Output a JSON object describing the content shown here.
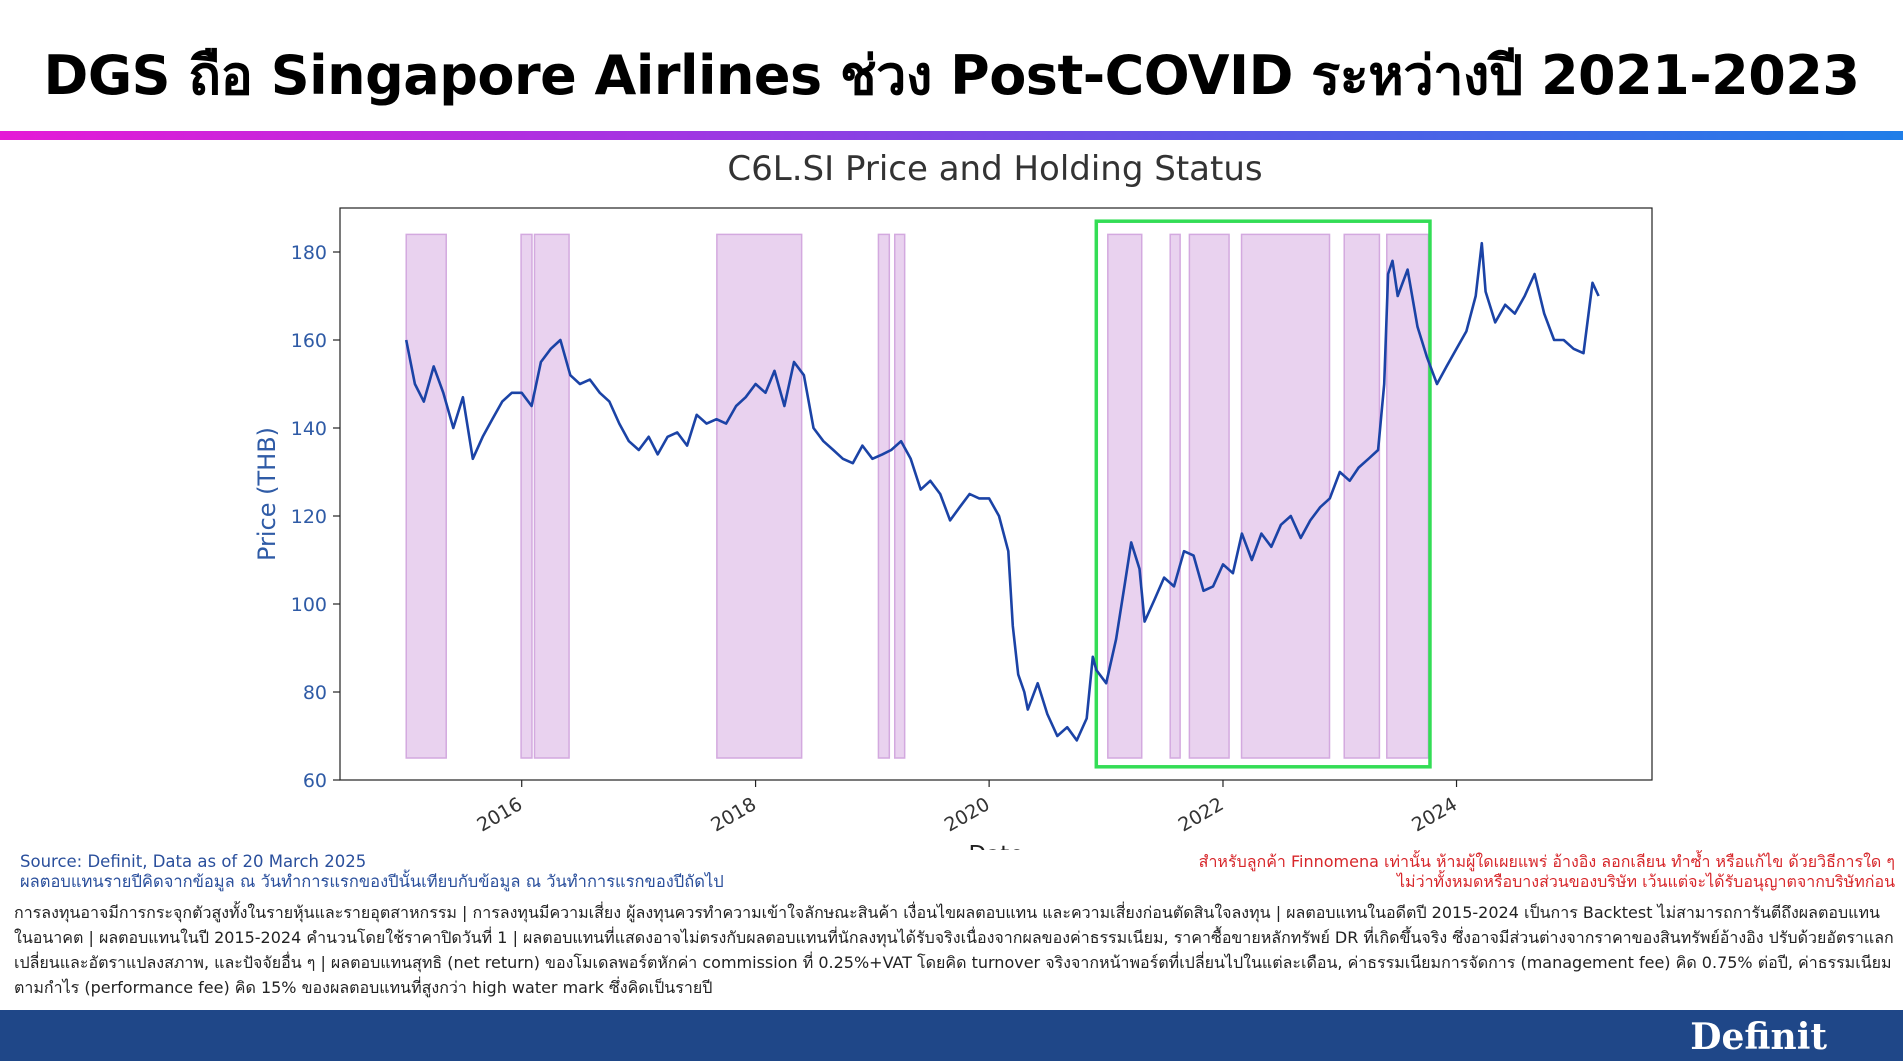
{
  "page": {
    "headline": "DGS ถือ Singapore Airlines ช่วง Post-COVID ระหว่างปี 2021-2023",
    "source_line1": "Source: Definit, Data as of 20 March 2025",
    "source_line2": "ผลตอบแทนรายปีคิดจากข้อมูล ณ วันทำการแรกของปีนั้นเทียบกับข้อมูล ณ วันทำการแรกของปีถัดไป",
    "notice_line1": "สำหรับลูกค้า Finnomena เท่านั้น ห้ามผู้ใดเผยแพร่ อ้างอิง ลอกเลียน ทำซ้ำ หรือแก้ไข ด้วยวิธีการใด ๆ",
    "notice_line2": "ไม่ว่าทั้งหมดหรือบางส่วนของบริษัท เว้นแต่จะได้รับอนุญาตจากบริษัทก่อน",
    "disclaimer": "การลงทุนอาจมีการกระจุกตัวสูงทั้งในรายหุ้นและรายอุตสาหกรรม | การลงทุนมีความเสี่ยง ผู้ลงทุนควรทำความเข้าใจลักษณะสินค้า เงื่อนไขผลตอบแทน และความเสี่ยงก่อนตัดสินใจลงทุน | ผลตอบแทนในอดีตปี 2015-2024 เป็นการ Backtest ไม่สามารถการันตีถึงผลตอบแทนในอนาคต | ผลตอบแทนในปี 2015-2024 คำนวนโดยใช้ราคาปิดวันที่ 1 | ผลตอบแทนที่แสดงอาจไม่ตรงกับผลตอบแทนที่นักลงทุนได้รับจริงเนื่องจากผลของค่าธรรมเนียม, ราคาซื้อขายหลักทรัพย์ DR ที่เกิดขึ้นจริง ซึ่งอาจมีส่วนต่างจากราคาของสินทรัพย์อ้างอิง ปรับด้วยอัตราแลกเปลี่ยนและอัตราแปลงสภาพ, และปัจจัยอื่น ๆ | ผลตอบแทนสุทธิ (net return) ของโมเดลพอร์ตหักค่า commission ที่ 0.25%+VAT โดยคิด turnover จริงจากหน้าพอร์ตที่เปลี่ยนไปในแต่ละเดือน, ค่าธรรมเนียมการจัดการ (management fee) คิด 0.75% ต่อปี, ค่าธรรมเนียมตามกำไร (performance fee) คิด 15% ของผลตอบแทนที่สูงกว่า high water mark ซึ่งคิดเป็นรายปี",
    "brand": "Definit"
  },
  "colors": {
    "line": "#1b43a6",
    "holding_fill": "#e9d2ef",
    "holding_stroke": "#d3a9df",
    "highlight_box": "#33dd55",
    "axis_label": "#2f5ba6",
    "footer": "#1f4788"
  },
  "chart_data": {
    "type": "line",
    "title": "C6L.SI Price and Holding Status",
    "xlabel": "Date",
    "ylabel": "Price (THB)",
    "ylim": [
      60,
      190
    ],
    "xlim": [
      "2014-06-12",
      "2025-09-03"
    ],
    "y_ticks": [
      60,
      80,
      100,
      120,
      140,
      160,
      180
    ],
    "x_ticks": [
      "2016-01-01",
      "2018-01-01",
      "2020-01-01",
      "2022-01-01",
      "2024-01-01"
    ],
    "x_tick_labels": [
      "2016",
      "2018",
      "2020",
      "2022",
      "2024"
    ],
    "grid": false,
    "holding_periods": [
      [
        "2015-01-05",
        "2015-05-10"
      ],
      [
        "2015-12-30",
        "2016-02-02"
      ],
      [
        "2016-02-10",
        "2016-05-28"
      ],
      [
        "2017-09-02",
        "2018-05-25"
      ],
      [
        "2019-01-20",
        "2019-02-23"
      ],
      [
        "2019-03-12",
        "2019-04-12"
      ],
      [
        "2021-01-06",
        "2021-04-22"
      ],
      [
        "2021-07-20",
        "2021-08-20"
      ],
      [
        "2021-09-18",
        "2022-01-20"
      ],
      [
        "2022-02-28",
        "2022-11-30"
      ],
      [
        "2023-01-15",
        "2023-05-05"
      ],
      [
        "2023-05-28",
        "2023-10-05"
      ]
    ],
    "highlight_window": {
      "x_start": "2020-12-01",
      "x_end": "2023-10-10",
      "y_low": 63,
      "y_high": 187,
      "label": ""
    },
    "series": [
      {
        "points": [
          [
            "2015-01-05",
            160
          ],
          [
            "2015-02-01",
            150
          ],
          [
            "2015-03-01",
            146
          ],
          [
            "2015-04-01",
            154
          ],
          [
            "2015-05-01",
            148
          ],
          [
            "2015-06-01",
            140
          ],
          [
            "2015-07-01",
            147
          ],
          [
            "2015-08-01",
            133
          ],
          [
            "2015-09-01",
            138
          ],
          [
            "2015-10-01",
            142
          ],
          [
            "2015-11-01",
            146
          ],
          [
            "2015-12-01",
            148
          ],
          [
            "2016-01-01",
            148
          ],
          [
            "2016-02-01",
            145
          ],
          [
            "2016-03-01",
            155
          ],
          [
            "2016-04-01",
            158
          ],
          [
            "2016-05-01",
            160
          ],
          [
            "2016-06-01",
            152
          ],
          [
            "2016-07-01",
            150
          ],
          [
            "2016-08-01",
            151
          ],
          [
            "2016-09-01",
            148
          ],
          [
            "2016-10-01",
            146
          ],
          [
            "2016-11-01",
            141
          ],
          [
            "2016-12-01",
            137
          ],
          [
            "2017-01-01",
            135
          ],
          [
            "2017-02-01",
            138
          ],
          [
            "2017-03-01",
            134
          ],
          [
            "2017-04-01",
            138
          ],
          [
            "2017-05-01",
            139
          ],
          [
            "2017-06-01",
            136
          ],
          [
            "2017-07-01",
            143
          ],
          [
            "2017-08-01",
            141
          ],
          [
            "2017-09-01",
            142
          ],
          [
            "2017-10-01",
            141
          ],
          [
            "2017-11-01",
            145
          ],
          [
            "2017-12-01",
            147
          ],
          [
            "2018-01-01",
            150
          ],
          [
            "2018-02-01",
            148
          ],
          [
            "2018-03-01",
            153
          ],
          [
            "2018-04-01",
            145
          ],
          [
            "2018-05-01",
            155
          ],
          [
            "2018-06-01",
            152
          ],
          [
            "2018-07-01",
            140
          ],
          [
            "2018-08-01",
            137
          ],
          [
            "2018-09-01",
            135
          ],
          [
            "2018-10-01",
            133
          ],
          [
            "2018-11-01",
            132
          ],
          [
            "2018-12-01",
            136
          ],
          [
            "2019-01-01",
            133
          ],
          [
            "2019-02-01",
            134
          ],
          [
            "2019-03-01",
            135
          ],
          [
            "2019-04-01",
            137
          ],
          [
            "2019-05-01",
            133
          ],
          [
            "2019-06-01",
            126
          ],
          [
            "2019-07-01",
            128
          ],
          [
            "2019-08-01",
            125
          ],
          [
            "2019-09-01",
            119
          ],
          [
            "2019-10-01",
            122
          ],
          [
            "2019-11-01",
            125
          ],
          [
            "2019-12-01",
            124
          ],
          [
            "2020-01-01",
            124
          ],
          [
            "2020-02-01",
            120
          ],
          [
            "2020-03-01",
            112
          ],
          [
            "2020-03-15",
            95
          ],
          [
            "2020-04-01",
            84
          ],
          [
            "2020-04-20",
            80
          ],
          [
            "2020-05-01",
            76
          ],
          [
            "2020-06-01",
            82
          ],
          [
            "2020-07-01",
            75
          ],
          [
            "2020-08-01",
            70
          ],
          [
            "2020-09-01",
            72
          ],
          [
            "2020-10-01",
            69
          ],
          [
            "2020-11-01",
            74
          ],
          [
            "2020-11-20",
            88
          ],
          [
            "2020-12-01",
            85
          ],
          [
            "2021-01-01",
            82
          ],
          [
            "2021-02-01",
            92
          ],
          [
            "2021-03-01",
            105
          ],
          [
            "2021-03-20",
            114
          ],
          [
            "2021-04-15",
            108
          ],
          [
            "2021-05-01",
            96
          ],
          [
            "2021-06-01",
            101
          ],
          [
            "2021-07-01",
            106
          ],
          [
            "2021-08-01",
            104
          ],
          [
            "2021-09-01",
            112
          ],
          [
            "2021-10-01",
            111
          ],
          [
            "2021-11-01",
            103
          ],
          [
            "2021-12-01",
            104
          ],
          [
            "2022-01-01",
            109
          ],
          [
            "2022-02-01",
            107
          ],
          [
            "2022-03-01",
            116
          ],
          [
            "2022-04-01",
            110
          ],
          [
            "2022-05-01",
            116
          ],
          [
            "2022-06-01",
            113
          ],
          [
            "2022-07-01",
            118
          ],
          [
            "2022-08-01",
            120
          ],
          [
            "2022-09-01",
            115
          ],
          [
            "2022-10-01",
            119
          ],
          [
            "2022-11-01",
            122
          ],
          [
            "2022-12-01",
            124
          ],
          [
            "2023-01-01",
            130
          ],
          [
            "2023-02-01",
            128
          ],
          [
            "2023-03-01",
            131
          ],
          [
            "2023-04-01",
            133
          ],
          [
            "2023-05-01",
            135
          ],
          [
            "2023-05-20",
            150
          ],
          [
            "2023-06-01",
            175
          ],
          [
            "2023-06-15",
            178
          ],
          [
            "2023-07-01",
            170
          ],
          [
            "2023-08-01",
            176
          ],
          [
            "2023-09-01",
            163
          ],
          [
            "2023-10-01",
            156
          ],
          [
            "2023-11-01",
            150
          ],
          [
            "2023-12-01",
            154
          ],
          [
            "2024-01-01",
            158
          ],
          [
            "2024-02-01",
            162
          ],
          [
            "2024-03-01",
            170
          ],
          [
            "2024-03-20",
            182
          ],
          [
            "2024-04-01",
            171
          ],
          [
            "2024-05-01",
            164
          ],
          [
            "2024-06-01",
            168
          ],
          [
            "2024-07-01",
            166
          ],
          [
            "2024-08-01",
            170
          ],
          [
            "2024-09-01",
            175
          ],
          [
            "2024-10-01",
            166
          ],
          [
            "2024-11-01",
            160
          ],
          [
            "2024-12-01",
            160
          ],
          [
            "2025-01-01",
            158
          ],
          [
            "2025-02-01",
            157
          ],
          [
            "2025-03-01",
            173
          ],
          [
            "2025-03-20",
            170
          ]
        ]
      }
    ]
  }
}
